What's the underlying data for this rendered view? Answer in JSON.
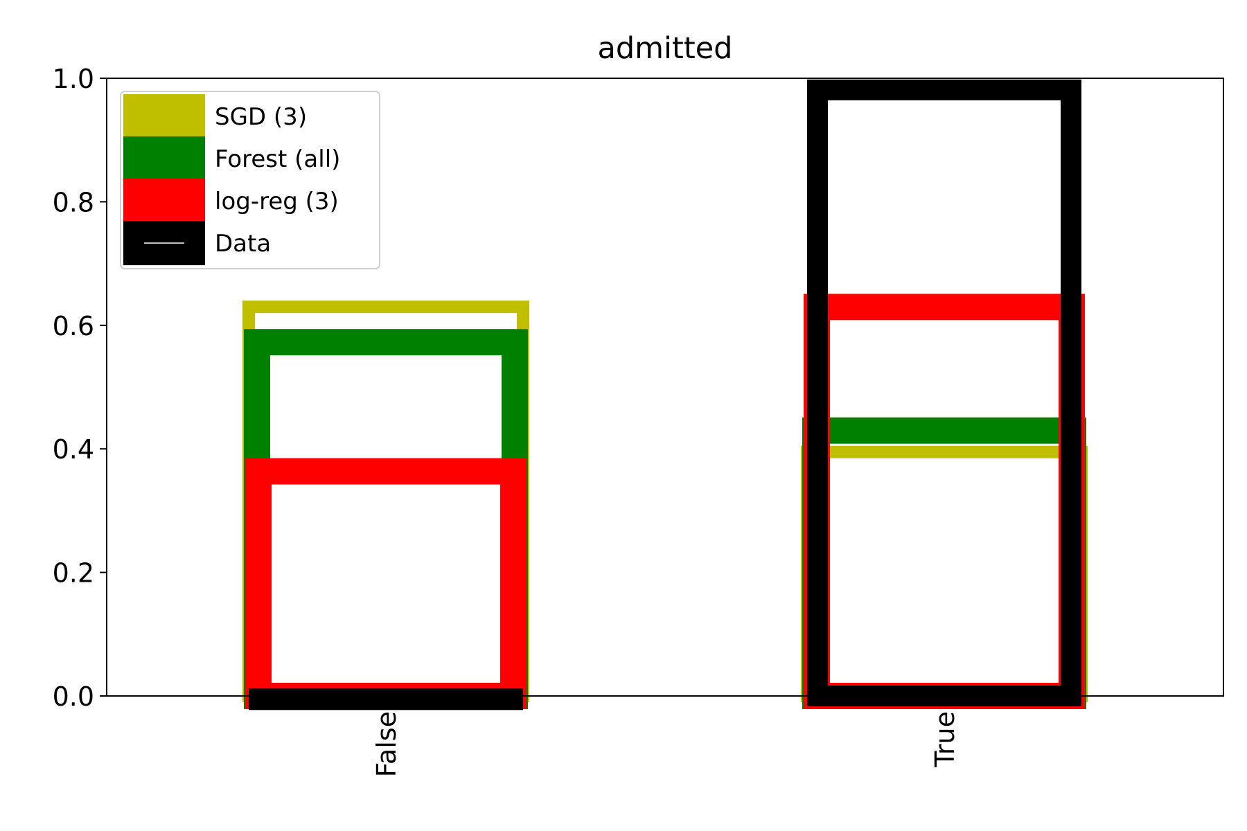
{
  "chart_data": {
    "type": "bar",
    "title": "admitted",
    "xlabel": "",
    "ylabel": "",
    "categories": [
      "False",
      "True"
    ],
    "ylim": [
      0,
      1.0
    ],
    "yticks": [
      "0.0",
      "0.2",
      "0.4",
      "0.6",
      "0.8",
      "1.0"
    ],
    "grid": false,
    "legend_position": "top-left",
    "series": [
      {
        "name": "SGD (3)",
        "color": "#bfbf00",
        "values": [
          0.64,
          0.405
        ]
      },
      {
        "name": "Forest (all)",
        "color": "#008000",
        "values": [
          0.594,
          0.451
        ]
      },
      {
        "name": "log-reg (3)",
        "color": "#ff0000",
        "values": [
          0.385,
          0.651
        ]
      },
      {
        "name": "Data",
        "color": "#000000",
        "values": [
          0.012,
          0.998
        ]
      }
    ]
  }
}
